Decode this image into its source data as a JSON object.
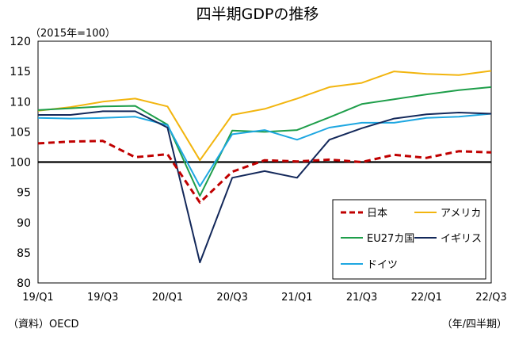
{
  "chart_data": {
    "type": "line",
    "title": "四半期GDPの推移",
    "unit_label": "（2015年=100）",
    "source": "（資料）OECD",
    "period_label": "（年/四半期）",
    "x": [
      "19/Q1",
      "19/Q2",
      "19/Q3",
      "19/Q4",
      "20/Q1",
      "20/Q2",
      "20/Q3",
      "20/Q4",
      "21/Q1",
      "21/Q2",
      "21/Q3",
      "21/Q4",
      "22/Q1",
      "22/Q2",
      "22/Q3"
    ],
    "x_tick_labels": [
      "19/Q1",
      "19/Q3",
      "20/Q1",
      "20/Q3",
      "21/Q1",
      "21/Q3",
      "22/Q1",
      "22/Q3"
    ],
    "ylim": [
      80,
      120
    ],
    "yticks": [
      80,
      85,
      90,
      95,
      100,
      105,
      110,
      115,
      120
    ],
    "reference_line": 100,
    "grid": false,
    "legend_position": "bottom-right",
    "series": [
      {
        "name": "日本",
        "color": "#c00000",
        "dash": true,
        "values": [
          103.1,
          103.4,
          103.5,
          100.8,
          101.3,
          93.3,
          98.4,
          100.3,
          100.1,
          100.4,
          100.0,
          101.2,
          100.7,
          101.8,
          101.6
        ]
      },
      {
        "name": "アメリカ",
        "color": "#f2b50f",
        "dash": false,
        "values": [
          108.5,
          109.1,
          110.0,
          110.5,
          109.2,
          100.3,
          107.8,
          108.8,
          110.5,
          112.4,
          113.1,
          115.0,
          114.6,
          114.4,
          115.1
        ]
      },
      {
        "name": "EU27カ国",
        "color": "#1e9e4a",
        "dash": false,
        "values": [
          108.6,
          108.9,
          109.2,
          109.3,
          106.2,
          94.4,
          105.2,
          105.0,
          105.3,
          107.4,
          109.6,
          110.4,
          111.2,
          111.9,
          112.4
        ]
      },
      {
        "name": "イギリス",
        "color": "#13285a",
        "dash": false,
        "values": [
          107.8,
          107.8,
          108.4,
          108.4,
          105.7,
          83.4,
          97.4,
          98.5,
          97.4,
          103.7,
          105.6,
          107.2,
          107.9,
          108.2,
          108.0
        ]
      },
      {
        "name": "ドイツ",
        "color": "#1ea7e1",
        "dash": false,
        "values": [
          107.3,
          107.2,
          107.3,
          107.5,
          106.1,
          96.0,
          104.6,
          105.3,
          103.7,
          105.7,
          106.5,
          106.5,
          107.3,
          107.5,
          108.0
        ]
      }
    ]
  }
}
